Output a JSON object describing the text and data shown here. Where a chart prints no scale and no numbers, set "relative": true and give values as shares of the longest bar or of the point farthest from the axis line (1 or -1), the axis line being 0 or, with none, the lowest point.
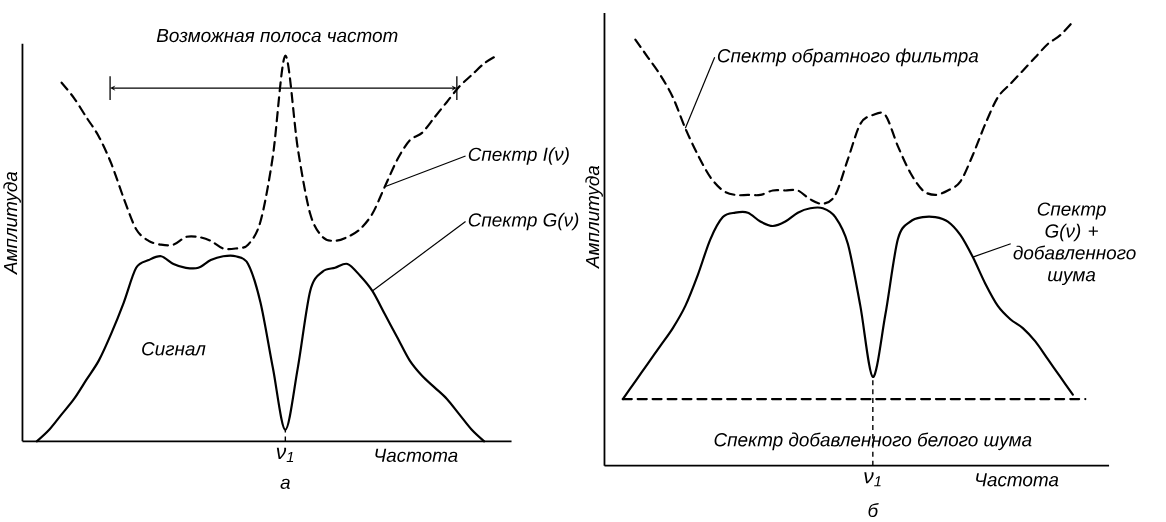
{
  "chart_data": [
    {
      "type": "line",
      "relative": true,
      "ylabel": "Амплитуда",
      "xlabel": "Частота",
      "categories": [
        null,
        null,
        null,
        null,
        null,
        null,
        null,
        null,
        null,
        null,
        null,
        null,
        null,
        null,
        null,
        null,
        null,
        null,
        null,
        null,
        null,
        null,
        null,
        null,
        null,
        null,
        null,
        null,
        null,
        null,
        null,
        null,
        null,
        null,
        null,
        null,
        null,
        null
      ],
      "series": [
        {
          "name": "Спектр I(ν)",
          "color": "#000000",
          "line_style": "dashed",
          "values": [
            null,
            null,
            0.93,
            0.89,
            0.84,
            0.79,
            0.72,
            0.63,
            0.55,
            0.52,
            0.51,
            0.51,
            0.53,
            0.53,
            0.52,
            0.5,
            0.5,
            0.51,
            0.57,
            0.74,
            1,
            0.76,
            0.59,
            0.53,
            0.52,
            0.53,
            0.55,
            0.59,
            0.66,
            0.73,
            0.78,
            0.8,
            0.84,
            0.88,
            0.92,
            0.95,
            0.98,
            1
          ]
        },
        {
          "name": "Спектр G(ν)",
          "color": "#000000",
          "line_style": "solid",
          "values": [
            0,
            0.03,
            0.07,
            0.11,
            0.16,
            0.21,
            0.28,
            0.36,
            0.45,
            0.47,
            0.48,
            0.46,
            0.45,
            0.45,
            0.47,
            0.48,
            0.48,
            0.46,
            0.36,
            0.19,
            0.03,
            0.19,
            0.39,
            0.44,
            0.45,
            0.46,
            0.43,
            0.39,
            0.33,
            0.27,
            0.21,
            0.17,
            0.14,
            0.11,
            0.07,
            0.03,
            0,
            null
          ]
        }
      ],
      "annotations": [
        "Возможная полоса частот",
        "Сигнал",
        "ν$_{1}$",
        "а"
      ]
    },
    {
      "type": "line",
      "relative": true,
      "ylabel": "Амплитуда",
      "xlabel": "Частота",
      "categories": [
        null,
        null,
        null,
        null,
        null,
        null,
        null,
        null,
        null,
        null,
        null,
        null,
        null,
        null,
        null,
        null,
        null,
        null,
        null,
        null,
        null,
        null,
        null,
        null,
        null,
        null,
        null,
        null,
        null,
        null,
        null,
        null,
        null,
        null,
        null,
        null,
        null,
        null
      ],
      "series": [
        {
          "name": "Спектр обратного фильтра",
          "color": "#000000",
          "line_style": "dashed",
          "values": [
            null,
            0.96,
            0.92,
            0.88,
            0.83,
            0.76,
            0.7,
            0.65,
            0.62,
            0.61,
            0.61,
            0.61,
            0.62,
            0.62,
            0.62,
            0.6,
            0.59,
            0.61,
            0.69,
            0.77,
            0.79,
            0.79,
            0.72,
            0.66,
            0.62,
            0.61,
            0.62,
            0.64,
            0.7,
            0.77,
            0.83,
            0.86,
            0.89,
            0.92,
            0.95,
            0.97,
            1,
            null
          ]
        },
        {
          "name": "Спектр G(ν) + добавленного шума",
          "color": "#000000",
          "line_style": "solid",
          "values": [
            0.15,
            0.19,
            0.23,
            0.27,
            0.31,
            0.36,
            0.43,
            0.51,
            0.56,
            0.57,
            0.57,
            0.55,
            0.54,
            0.55,
            0.57,
            0.58,
            0.58,
            0.56,
            0.5,
            0.36,
            0.2,
            0.34,
            0.51,
            0.55,
            0.56,
            0.56,
            0.55,
            0.52,
            0.47,
            0.41,
            0.36,
            0.33,
            0.31,
            0.28,
            0.24,
            0.2,
            0.16,
            null
          ]
        },
        {
          "name": "Спектр добавленного белого шума",
          "color": "#000000",
          "line_style": "dashed",
          "values": [
            0.15,
            0.15,
            0.15,
            0.15,
            0.15,
            0.15,
            0.15,
            0.15,
            0.15,
            0.15,
            0.15,
            0.15,
            0.15,
            0.15,
            0.15,
            0.15,
            0.15,
            0.15,
            0.15,
            0.15,
            0.15,
            0.15,
            0.15,
            0.15,
            0.15,
            0.15,
            0.15,
            0.15,
            0.15,
            0.15,
            0.15,
            0.15,
            0.15,
            0.15,
            0.15,
            0.15,
            0.15,
            0.15
          ]
        }
      ],
      "annotations": [
        "ν$_{1}$",
        "б"
      ]
    }
  ]
}
